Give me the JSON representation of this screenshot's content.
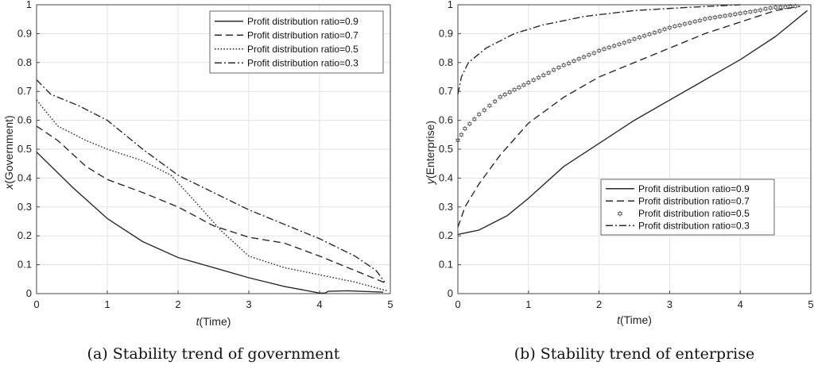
{
  "chart_data": [
    {
      "type": "line",
      "caption": "(a) Stability trend of government",
      "xlabel_var": "t",
      "xlabel_unit": "(Time)",
      "ylabel_var": "x",
      "ylabel_unit": "(Government)",
      "xlim": [
        0,
        5
      ],
      "ylim": [
        0,
        1
      ],
      "xticks": [
        "0",
        "1",
        "2",
        "3",
        "4",
        "5"
      ],
      "yticks": [
        "0",
        "0.1",
        "0.2",
        "0.3",
        "0.4",
        "0.5",
        "0.6",
        "0.7",
        "0.8",
        "0.9",
        "1"
      ],
      "grid": true,
      "legend_position": "top-right",
      "series": [
        {
          "name": "Profit distribution ratio=0.9",
          "style": "solid",
          "points": [
            [
              0,
              0.49
            ],
            [
              0.5,
              0.37
            ],
            [
              1,
              0.26
            ],
            [
              1.5,
              0.18
            ],
            [
              2,
              0.125
            ],
            [
              2.5,
              0.09
            ],
            [
              3,
              0.055
            ],
            [
              3.5,
              0.025
            ],
            [
              4,
              0.002
            ],
            [
              4.08,
              0.002
            ],
            [
              4.12,
              0.008
            ],
            [
              4.4,
              0.01
            ],
            [
              4.9,
              0.005
            ]
          ]
        },
        {
          "name": "Profit distribution ratio=0.7",
          "style": "dashed",
          "points": [
            [
              0,
              0.58
            ],
            [
              0.3,
              0.53
            ],
            [
              0.7,
              0.44
            ],
            [
              1,
              0.395
            ],
            [
              1.5,
              0.35
            ],
            [
              2,
              0.3
            ],
            [
              2.5,
              0.235
            ],
            [
              3,
              0.195
            ],
            [
              3.5,
              0.175
            ],
            [
              4,
              0.13
            ],
            [
              4.5,
              0.08
            ],
            [
              4.95,
              0.035
            ]
          ]
        },
        {
          "name": "Profit distribution ratio=0.5",
          "style": "dotted",
          "points": [
            [
              0,
              0.67
            ],
            [
              0.3,
              0.58
            ],
            [
              0.7,
              0.53
            ],
            [
              1,
              0.5
            ],
            [
              1.5,
              0.46
            ],
            [
              1.9,
              0.41
            ],
            [
              2.2,
              0.33
            ],
            [
              2.6,
              0.22
            ],
            [
              3,
              0.13
            ],
            [
              3.5,
              0.09
            ],
            [
              4,
              0.065
            ],
            [
              4.5,
              0.04
            ],
            [
              4.95,
              0.01
            ]
          ]
        },
        {
          "name": "Profit distribution ratio=0.3",
          "style": "dashdot",
          "points": [
            [
              0,
              0.74
            ],
            [
              0.2,
              0.69
            ],
            [
              0.6,
              0.65
            ],
            [
              1,
              0.6
            ],
            [
              1.5,
              0.5
            ],
            [
              2,
              0.41
            ],
            [
              2.5,
              0.35
            ],
            [
              3,
              0.29
            ],
            [
              3.5,
              0.24
            ],
            [
              4,
              0.19
            ],
            [
              4.5,
              0.13
            ],
            [
              4.8,
              0.08
            ],
            [
              4.92,
              0.04
            ]
          ]
        }
      ]
    },
    {
      "type": "line",
      "caption": "(b) Stability trend of enterprise",
      "xlabel_var": "t",
      "xlabel_unit": "(Time)",
      "ylabel_var": "y",
      "ylabel_unit": "(Enterprise)",
      "xlim": [
        0,
        5
      ],
      "ylim": [
        0,
        1
      ],
      "xticks": [
        "0",
        "1",
        "2",
        "3",
        "4",
        "5"
      ],
      "yticks": [
        "0",
        "0.1",
        "0.2",
        "0.3",
        "0.4",
        "0.5",
        "0.6",
        "0.7",
        "0.8",
        "0.9",
        "1"
      ],
      "grid": true,
      "legend_position": "bottom-right",
      "series": [
        {
          "name": "Profit distribution ratio=0.9",
          "style": "solid",
          "points": [
            [
              0,
              0.205
            ],
            [
              0.3,
              0.22
            ],
            [
              0.7,
              0.27
            ],
            [
              1,
              0.33
            ],
            [
              1.5,
              0.44
            ],
            [
              2,
              0.52
            ],
            [
              2.5,
              0.6
            ],
            [
              3,
              0.67
            ],
            [
              3.5,
              0.74
            ],
            [
              4,
              0.81
            ],
            [
              4.5,
              0.89
            ],
            [
              4.95,
              0.98
            ]
          ]
        },
        {
          "name": "Profit distribution ratio=0.7",
          "style": "dashed",
          "points": [
            [
              0,
              0.23
            ],
            [
              0.1,
              0.3
            ],
            [
              0.3,
              0.38
            ],
            [
              0.6,
              0.48
            ],
            [
              1,
              0.59
            ],
            [
              1.5,
              0.68
            ],
            [
              2,
              0.75
            ],
            [
              2.5,
              0.8
            ],
            [
              3,
              0.85
            ],
            [
              3.5,
              0.9
            ],
            [
              4,
              0.94
            ],
            [
              4.5,
              0.98
            ],
            [
              4.85,
              0.995
            ]
          ]
        },
        {
          "name": "Profit distribution ratio=0.5",
          "style": "marker",
          "points": [
            [
              0,
              0.53
            ],
            [
              0.1,
              0.57
            ],
            [
              0.3,
              0.62
            ],
            [
              0.6,
              0.68
            ],
            [
              1,
              0.73
            ],
            [
              1.5,
              0.79
            ],
            [
              2,
              0.84
            ],
            [
              2.5,
              0.88
            ],
            [
              3,
              0.92
            ],
            [
              3.5,
              0.95
            ],
            [
              4,
              0.97
            ],
            [
              4.5,
              0.99
            ],
            [
              4.85,
              0.995
            ]
          ]
        },
        {
          "name": "Profit distribution ratio=0.3",
          "style": "dashdot",
          "points": [
            [
              0,
              0.69
            ],
            [
              0.05,
              0.75
            ],
            [
              0.15,
              0.8
            ],
            [
              0.4,
              0.85
            ],
            [
              0.8,
              0.9
            ],
            [
              1.2,
              0.93
            ],
            [
              1.8,
              0.96
            ],
            [
              2.5,
              0.98
            ],
            [
              3.2,
              0.99
            ],
            [
              4,
              1.0
            ]
          ]
        }
      ]
    }
  ]
}
